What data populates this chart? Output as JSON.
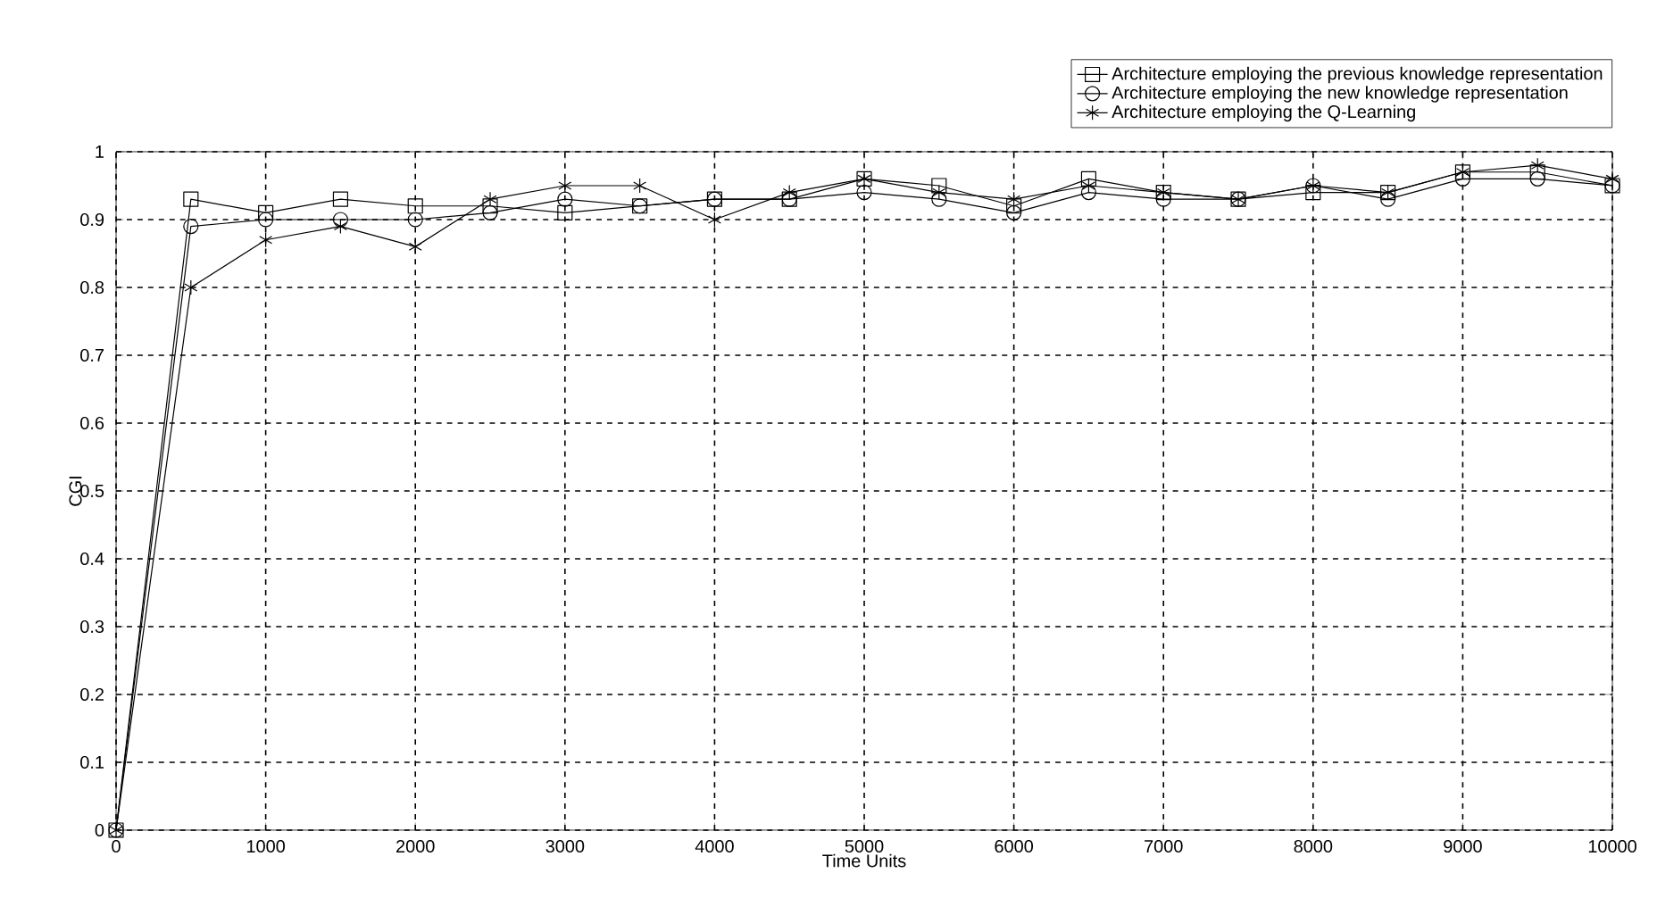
{
  "chart_data": {
    "type": "line",
    "xlabel": "Time Units",
    "ylabel": "CGI",
    "x": [
      0,
      500,
      1000,
      1500,
      2000,
      2500,
      3000,
      3500,
      4000,
      4500,
      5000,
      5500,
      6000,
      6500,
      7000,
      7500,
      8000,
      8500,
      9000,
      9500,
      10000
    ],
    "series": [
      {
        "name": "Architecture employing the previous knowledge representation",
        "color": "#000000",
        "marker": "square",
        "values": [
          0,
          0.93,
          0.91,
          0.93,
          0.92,
          0.92,
          0.91,
          0.92,
          0.93,
          0.93,
          0.96,
          0.95,
          0.92,
          0.96,
          0.94,
          0.93,
          0.94,
          0.94,
          0.97,
          0.97,
          0.95
        ]
      },
      {
        "name": "Architecture employing the new knowledge representation",
        "color": "#000000",
        "marker": "circle",
        "values": [
          0,
          0.89,
          0.9,
          0.9,
          0.9,
          0.91,
          0.93,
          0.92,
          0.93,
          0.93,
          0.94,
          0.93,
          0.91,
          0.94,
          0.93,
          0.93,
          0.95,
          0.93,
          0.96,
          0.96,
          0.95
        ]
      },
      {
        "name": "Architecture employing the Q-Learning",
        "color": "#000000",
        "marker": "cross",
        "values": [
          0,
          0.8,
          0.87,
          0.89,
          0.86,
          0.93,
          0.95,
          0.95,
          0.9,
          0.94,
          0.96,
          0.94,
          0.93,
          0.95,
          0.94,
          0.93,
          0.95,
          0.94,
          0.97,
          0.98,
          0.96
        ]
      }
    ],
    "xlim": [
      0,
      10000
    ],
    "xticks": [
      0,
      1000,
      2000,
      3000,
      4000,
      5000,
      6000,
      7000,
      8000,
      9000,
      10000
    ],
    "ylim": [
      0,
      1
    ],
    "yticks": [
      0,
      0.1,
      0.2,
      0.3,
      0.4,
      0.5,
      0.6,
      0.7,
      0.8,
      0.9,
      1
    ],
    "grid": true,
    "legend": "top right",
    "line_style": "solid"
  }
}
